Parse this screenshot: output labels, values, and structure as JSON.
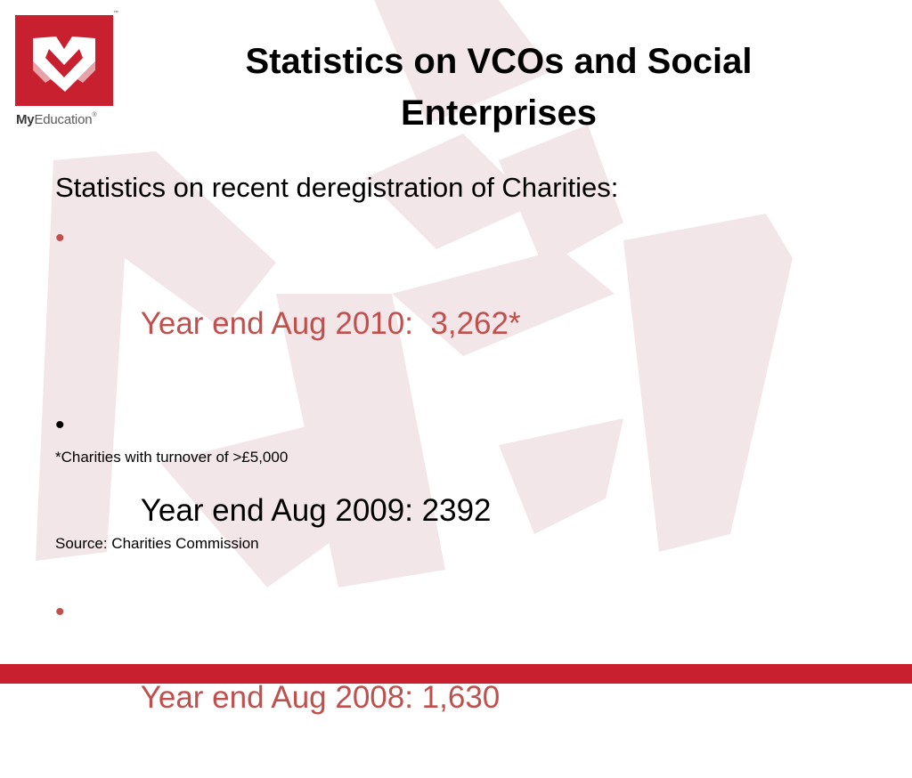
{
  "brand": {
    "name_bold": "My",
    "name_rest": "Education",
    "trademark": "™",
    "registered": "®",
    "accent_color": "#c8202f",
    "watermark_color": "#f3e6e9"
  },
  "slide": {
    "title": "Statistics on VCOs and Social Enterprises",
    "intro": "Statistics on recent deregistration of Charities:",
    "bullet_glyph": "•",
    "bullets": [
      {
        "text": "Year end Aug 2010:  3,262*",
        "color": "#c0504d"
      },
      {
        "text": "Year end Aug 2009: 2392",
        "color": "#000000"
      },
      {
        "text": "Year end Aug 2008: 1,630",
        "color": "#c0504d"
      }
    ],
    "footnote": "*Charities with turnover of >£5,000",
    "source": "Source: Charities Commission"
  }
}
